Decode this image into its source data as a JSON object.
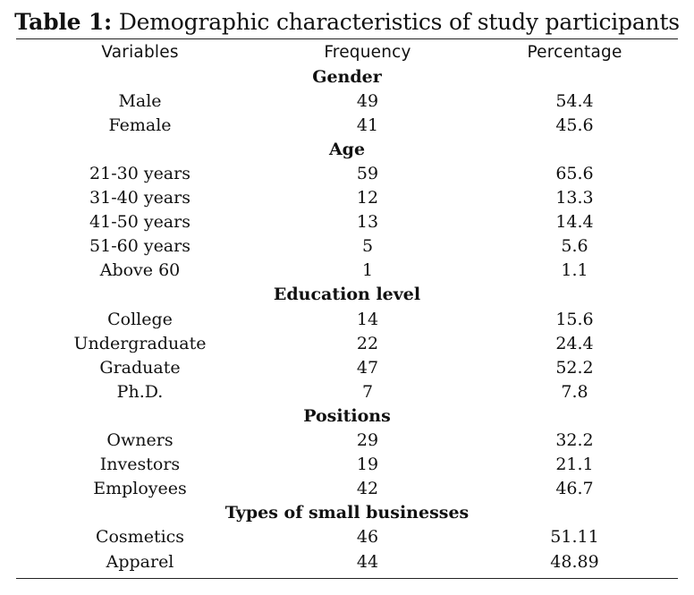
{
  "caption": {
    "label": "Table 1:",
    "text": " Demographic characteristics of study participants"
  },
  "headers": {
    "variables": "Variables",
    "frequency": "Frequency",
    "percentage": "Percentage"
  },
  "sections": [
    {
      "title": "Gender",
      "rows": [
        {
          "variable": "Male",
          "frequency": "49",
          "percentage": "54.4"
        },
        {
          "variable": "Female",
          "frequency": "41",
          "percentage": "45.6"
        }
      ]
    },
    {
      "title": "Age",
      "rows": [
        {
          "variable": "21-30 years",
          "frequency": "59",
          "percentage": "65.6"
        },
        {
          "variable": "31-40 years",
          "frequency": "12",
          "percentage": "13.3"
        },
        {
          "variable": "41-50 years",
          "frequency": "13",
          "percentage": "14.4"
        },
        {
          "variable": "51-60 years",
          "frequency": "5",
          "percentage": "5.6"
        },
        {
          "variable": "Above 60",
          "frequency": "1",
          "percentage": "1.1"
        }
      ]
    },
    {
      "title": "Education level",
      "rows": [
        {
          "variable": "College",
          "frequency": "14",
          "percentage": "15.6"
        },
        {
          "variable": "Undergraduate",
          "frequency": "22",
          "percentage": "24.4"
        },
        {
          "variable": "Graduate",
          "frequency": "47",
          "percentage": "52.2"
        },
        {
          "variable": "Ph.D.",
          "frequency": "7",
          "percentage": "7.8"
        }
      ]
    },
    {
      "title": "Positions",
      "rows": [
        {
          "variable": "Owners",
          "frequency": "29",
          "percentage": "32.2"
        },
        {
          "variable": "Investors",
          "frequency": "19",
          "percentage": "21.1"
        },
        {
          "variable": "Employees",
          "frequency": "42",
          "percentage": "46.7"
        }
      ]
    },
    {
      "title": "Types of small businesses",
      "rows": [
        {
          "variable": "Cosmetics",
          "frequency": "46",
          "percentage": "51.11"
        },
        {
          "variable": "Apparel",
          "frequency": "44",
          "percentage": "48.89"
        }
      ]
    }
  ]
}
